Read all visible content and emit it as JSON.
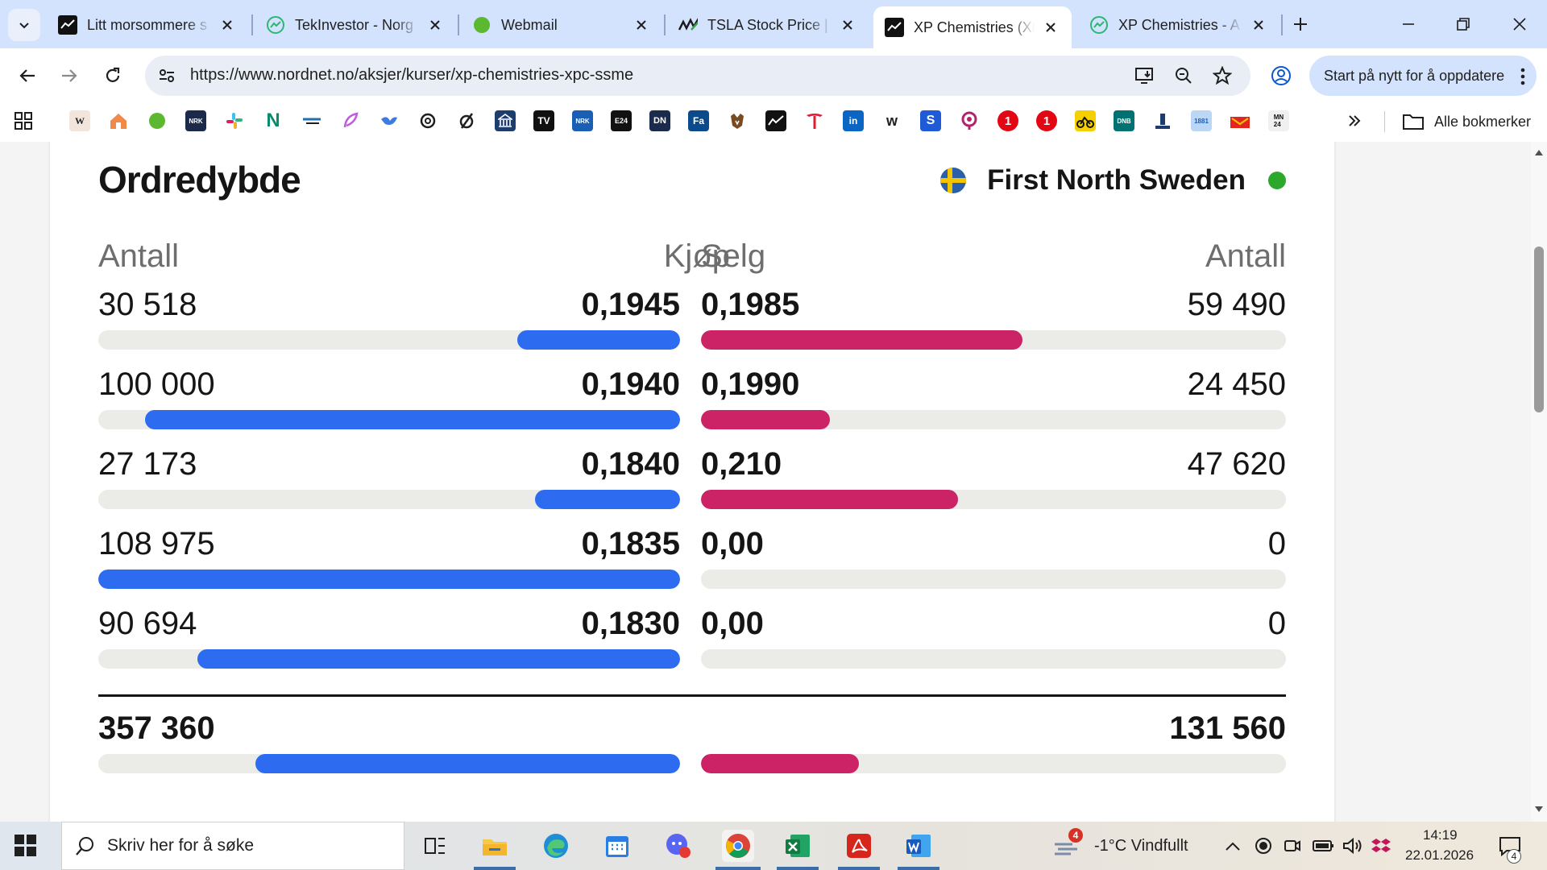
{
  "browser": {
    "tabs": [
      {
        "title": "Litt morsommere s",
        "favicon": "nordnet-icon",
        "active": false
      },
      {
        "title": "TekInvestor - Norg",
        "favicon": "tekinvestor-icon",
        "active": false
      },
      {
        "title": "Webmail",
        "favicon": "webmail-dot-icon",
        "active": false
      },
      {
        "title": "TSLA Stock Price |",
        "favicon": "marketwatch-icon",
        "active": false
      },
      {
        "title": "XP Chemistries (XP",
        "favicon": "nordnet-icon",
        "active": true
      },
      {
        "title": "XP Chemistries - A",
        "favicon": "tekinvestor-icon",
        "active": false
      }
    ],
    "url": "https://www.nordnet.no/aksjer/kurser/xp-chemistries-xpc-ssme",
    "update_button": "Start på nytt for å oppdatere",
    "all_bookmarks": "Alle bokmerker"
  },
  "orderbook": {
    "title": "Ordredybde",
    "market": "First North Sweden",
    "headers": {
      "buy_qty": "Antall",
      "buy": "Kjøp",
      "sell": "Selg",
      "sell_qty": "Antall"
    },
    "rows": [
      {
        "buy_qty": "30 518",
        "buy_price": "0,1945",
        "sell_price": "0,1985",
        "sell_qty": "59 490",
        "buy_level": 0.28,
        "sell_level": 0.55
      },
      {
        "buy_qty": "100 000",
        "buy_price": "0,1940",
        "sell_price": "0,1990",
        "sell_qty": "24 450",
        "buy_level": 0.92,
        "sell_level": 0.22
      },
      {
        "buy_qty": "27 173",
        "buy_price": "0,1840",
        "sell_price": "0,210",
        "sell_qty": "47 620",
        "buy_level": 0.25,
        "sell_level": 0.44
      },
      {
        "buy_qty": "108 975",
        "buy_price": "0,1835",
        "sell_price": "0,00",
        "sell_qty": "0",
        "buy_level": 1.0,
        "sell_level": 0
      },
      {
        "buy_qty": "90 694",
        "buy_price": "0,1830",
        "sell_price": "0,00",
        "sell_qty": "0",
        "buy_level": 0.83,
        "sell_level": 0
      }
    ],
    "totals": {
      "buy_qty": "357 360",
      "sell_qty": "131 560",
      "buy_level": 0.73,
      "sell_level": 0.27
    }
  },
  "taskbar": {
    "search_placeholder": "Skriv her for å søke",
    "weather": "-1°C  Vindfullt",
    "weather_badge": "4",
    "time": "14:19",
    "date": "22.01.2026",
    "notification_count": "4"
  },
  "colors": {
    "buy_bar": "#2d6cf0",
    "sell_bar": "#cc2366",
    "track": "#ebebe8",
    "live": "#2ca82c"
  }
}
